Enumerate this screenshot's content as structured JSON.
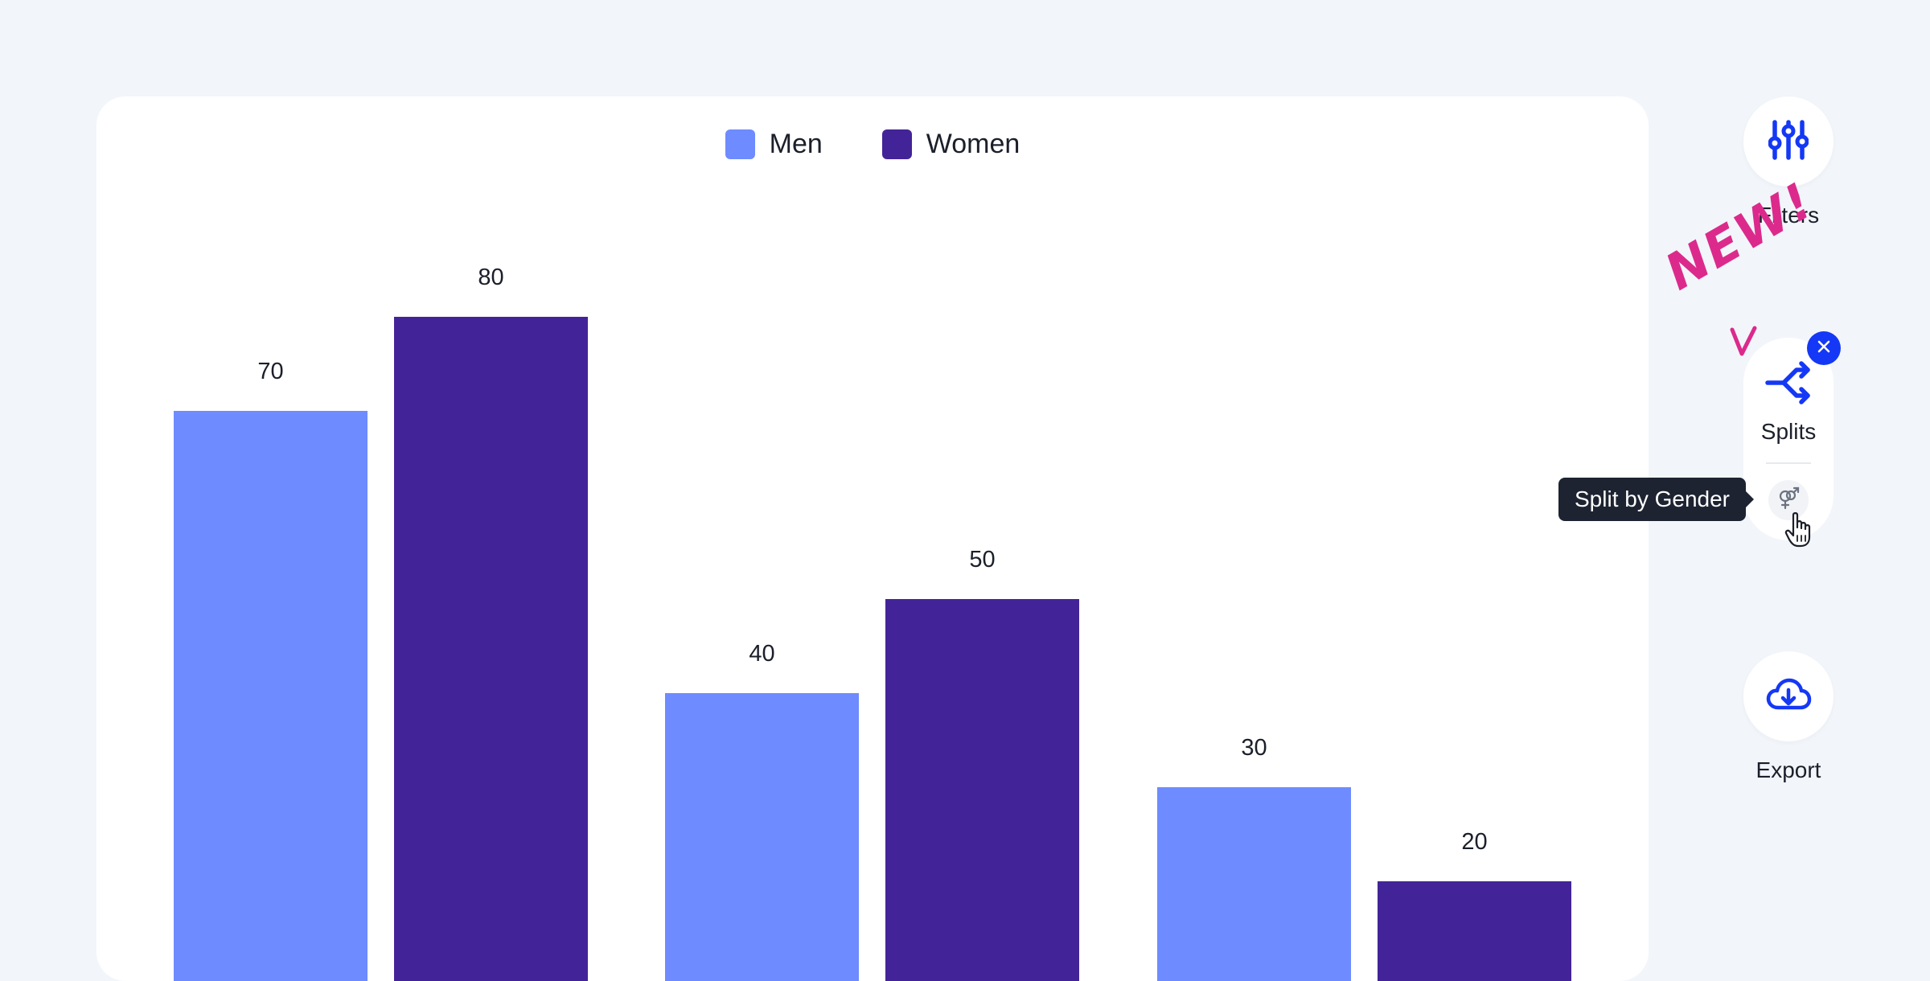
{
  "chart_data": {
    "type": "bar",
    "categories": [
      "",
      "",
      ""
    ],
    "series": [
      {
        "name": "Men",
        "color": "#6e8bff",
        "values": [
          70,
          40,
          30
        ]
      },
      {
        "name": "Women",
        "color": "#432498",
        "values": [
          80,
          50,
          20
        ]
      }
    ],
    "title": "",
    "xlabel": "",
    "ylabel": "",
    "legend": "top-center",
    "grid": false
  },
  "toolbar": {
    "filters": {
      "label": "Filters",
      "icon": "sliders-icon"
    },
    "splits": {
      "label": "Splits",
      "icon": "split-arrows-icon",
      "badge_icon": "close-icon",
      "option_icon": "gender-symbol-icon"
    },
    "export": {
      "label": "Export",
      "icon": "cloud-download-icon"
    }
  },
  "tooltip": {
    "text": "Split by Gender"
  },
  "new_badge": {
    "text": "NEW!",
    "color": "#dc2a8c"
  },
  "accent_color": "#1438f5"
}
